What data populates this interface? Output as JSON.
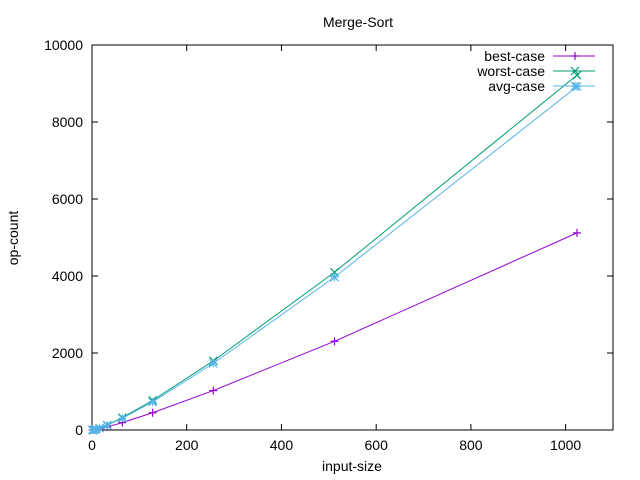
{
  "chart_data": {
    "type": "line",
    "title": "Merge-Sort",
    "xlabel": "input-size",
    "ylabel": "op-count",
    "xlim": [
      0,
      1100
    ],
    "ylim": [
      0,
      10000
    ],
    "xticks": [
      0,
      200,
      400,
      600,
      800,
      1000
    ],
    "yticks": [
      0,
      2000,
      4000,
      6000,
      8000,
      10000
    ],
    "grid": false,
    "legend_position": "top-right",
    "x": [
      1,
      2,
      4,
      8,
      16,
      32,
      64,
      128,
      256,
      512,
      1024
    ],
    "series": [
      {
        "name": "best-case",
        "color": "#9400d3",
        "marker": "plus",
        "values": [
          0,
          1,
          4,
          12,
          32,
          80,
          192,
          448,
          1024,
          2304,
          5120
        ]
      },
      {
        "name": "worst-case",
        "color": "#009e73",
        "marker": "cross",
        "values": [
          0,
          1,
          5,
          17,
          49,
          129,
          321,
          769,
          1793,
          4097,
          9217
        ]
      },
      {
        "name": "avg-case",
        "color": "#56b4e9",
        "marker": "star",
        "values": [
          0,
          1,
          5,
          16,
          46,
          122,
          302,
          730,
          1730,
          3970,
          8920
        ]
      }
    ]
  }
}
